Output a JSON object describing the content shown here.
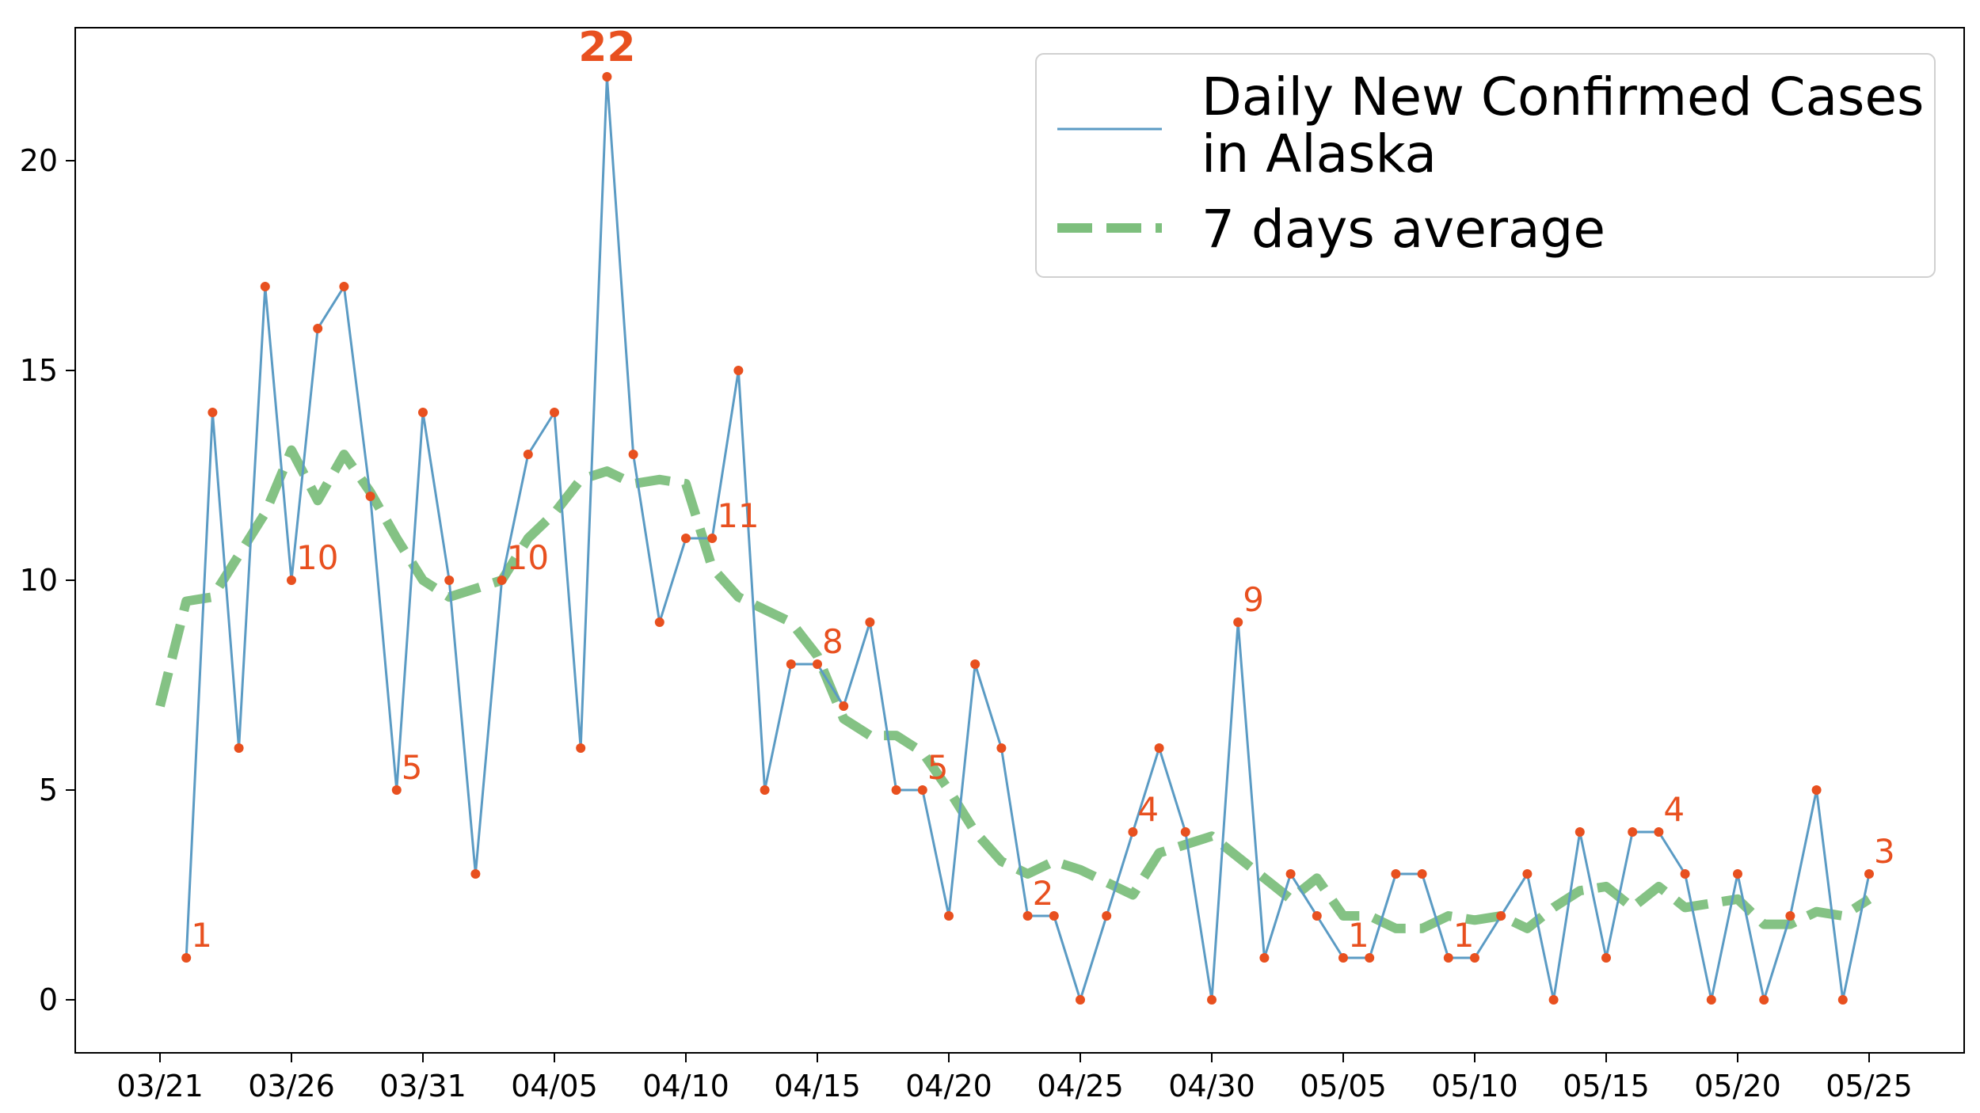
{
  "chart_data": {
    "type": "line",
    "title": "",
    "xlabel": "",
    "ylabel": "",
    "x_dates": [
      "03/21",
      "03/22",
      "03/23",
      "03/24",
      "03/25",
      "03/26",
      "03/27",
      "03/28",
      "03/29",
      "03/30",
      "03/31",
      "04/01",
      "04/02",
      "04/03",
      "04/04",
      "04/05",
      "04/06",
      "04/07",
      "04/08",
      "04/09",
      "04/10",
      "04/11",
      "04/12",
      "04/13",
      "04/14",
      "04/15",
      "04/16",
      "04/17",
      "04/18",
      "04/19",
      "04/20",
      "04/21",
      "04/22",
      "04/23",
      "04/24",
      "04/25",
      "04/26",
      "04/27",
      "04/28",
      "04/29",
      "04/30",
      "05/01",
      "05/02",
      "05/03",
      "05/04",
      "05/05",
      "05/06",
      "05/07",
      "05/08",
      "05/09",
      "05/10",
      "05/11",
      "05/12",
      "05/13",
      "05/14",
      "05/15",
      "05/16",
      "05/17",
      "05/18",
      "05/19",
      "05/20",
      "05/21",
      "05/22",
      "05/23",
      "05/24",
      "05/25"
    ],
    "x_ticks": [
      "03/21",
      "03/26",
      "03/31",
      "04/05",
      "04/10",
      "04/15",
      "04/20",
      "04/25",
      "04/30",
      "05/05",
      "05/10",
      "05/15",
      "05/20",
      "05/25"
    ],
    "ylim": [
      -1.2,
      23.2
    ],
    "y_ticks": [
      0,
      5,
      10,
      15,
      20
    ],
    "series": [
      {
        "name": "Daily New Confirmed Cases\n in Alaska",
        "style": "solid",
        "color": "#5b9bc4",
        "marker_color": "#e8501f",
        "start_index": 1,
        "values": [
          1,
          14,
          6,
          17,
          10,
          16,
          17,
          12,
          5,
          14,
          10,
          3,
          10,
          13,
          14,
          6,
          22,
          13,
          9,
          11,
          11,
          15,
          5,
          8,
          8,
          7,
          9,
          5,
          5,
          2,
          8,
          6,
          2,
          2,
          0,
          2,
          4,
          6,
          4,
          0,
          9,
          1,
          3,
          2,
          1,
          1,
          3,
          3,
          1,
          1,
          2,
          3,
          0,
          4,
          1,
          4,
          4,
          3,
          0,
          3,
          0,
          2,
          5,
          0,
          3
        ]
      },
      {
        "name": "7 days average",
        "style": "dashed",
        "color": "#7dbf7d",
        "start_index": 0,
        "values": [
          7.0,
          9.5,
          9.6,
          10.6,
          11.6,
          13.1,
          11.9,
          13.0,
          12.1,
          11.0,
          10.0,
          9.6,
          9.8,
          10.0,
          11.0,
          11.6,
          12.4,
          12.6,
          12.3,
          12.4,
          12.3,
          10.3,
          9.6,
          9.3,
          9.0,
          8.2,
          6.7,
          6.3,
          6.3,
          5.9,
          5.0,
          4.0,
          3.3,
          3.0,
          3.3,
          3.1,
          2.8,
          2.5,
          3.5,
          3.7,
          3.9,
          3.4,
          2.9,
          2.4,
          2.9,
          2.0,
          2.0,
          1.7,
          1.7,
          2.0,
          1.9,
          2.0,
          1.7,
          2.2,
          2.6,
          2.7,
          2.2,
          2.7,
          2.2,
          2.3,
          2.4,
          1.8,
          1.8,
          2.1,
          2.0,
          2.4
        ]
      }
    ],
    "annotations": [
      {
        "label": "1",
        "index": 1,
        "value": 1,
        "emphasis": false
      },
      {
        "label": "10",
        "index": 5,
        "value": 10,
        "emphasis": false
      },
      {
        "label": "5",
        "index": 9,
        "value": 5,
        "emphasis": false
      },
      {
        "label": "10",
        "index": 13,
        "value": 10,
        "emphasis": false
      },
      {
        "label": "22",
        "index": 17,
        "value": 22,
        "emphasis": true
      },
      {
        "label": "11",
        "index": 21,
        "value": 11,
        "emphasis": false
      },
      {
        "label": "8",
        "index": 25,
        "value": 8,
        "emphasis": false
      },
      {
        "label": "5",
        "index": 29,
        "value": 5,
        "emphasis": false
      },
      {
        "label": "2",
        "index": 33,
        "value": 2,
        "emphasis": false
      },
      {
        "label": "4",
        "index": 37,
        "value": 4,
        "emphasis": false
      },
      {
        "label": "9",
        "index": 41,
        "value": 9,
        "emphasis": false
      },
      {
        "label": "1",
        "index": 45,
        "value": 1,
        "emphasis": false
      },
      {
        "label": "1",
        "index": 49,
        "value": 1,
        "emphasis": false
      },
      {
        "label": "4",
        "index": 57,
        "value": 4,
        "emphasis": false
      },
      {
        "label": "3",
        "index": 65,
        "value": 3,
        "emphasis": false
      }
    ],
    "legend": {
      "position": "top-right"
    },
    "grid": false
  }
}
